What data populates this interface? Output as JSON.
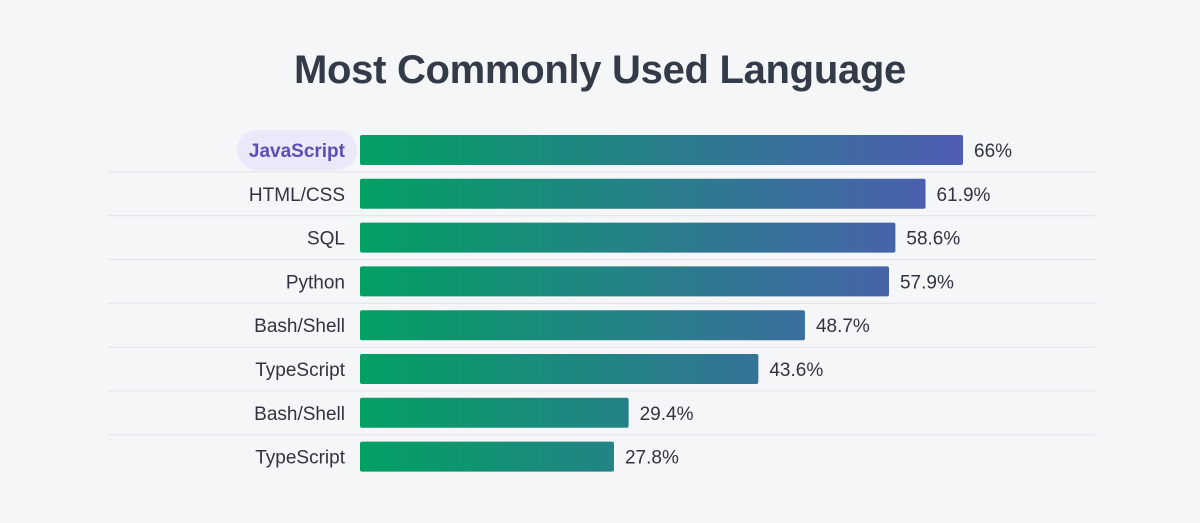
{
  "title": "Most Commonly Used Language",
  "colors": {
    "bar_start": "#02a063",
    "bar_end": "#4f5cb3",
    "highlight_bg": "#ebe8fa",
    "highlight_text": "#5b4fb5",
    "divider": "#e0e2e6"
  },
  "chart_data": {
    "type": "bar",
    "orientation": "horizontal",
    "title": "Most Commonly Used Language",
    "categories": [
      "JavaScript",
      "HTML/CSS",
      "SQL",
      "Python",
      "Bash/Shell",
      "TypeScript",
      "Bash/Shell",
      "TypeScript"
    ],
    "values": [
      66,
      61.9,
      58.6,
      57.9,
      48.7,
      43.6,
      29.4,
      27.8
    ],
    "value_labels": [
      "66%",
      "61.9%",
      "58.6%",
      "57.9%",
      "48.7%",
      "43.6%",
      "29.4%",
      "27.8%"
    ],
    "highlighted_index": 0,
    "xlim": [
      0,
      66
    ],
    "grid": false,
    "legend": "none"
  }
}
